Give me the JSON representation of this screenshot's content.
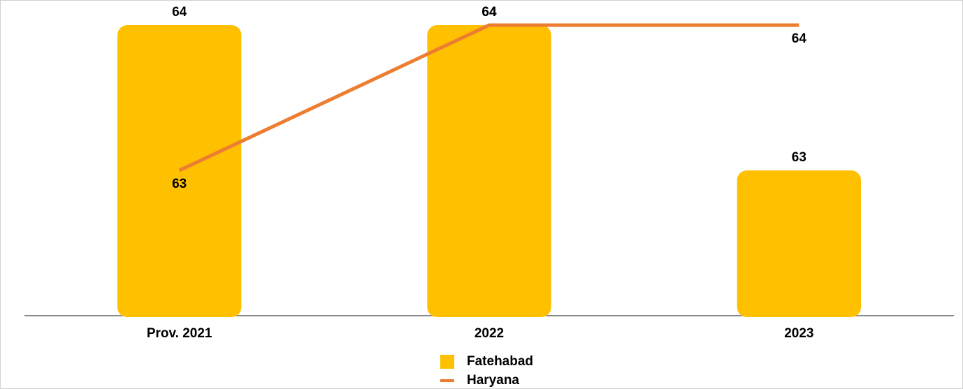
{
  "chart_data": {
    "type": "bar",
    "categories": [
      "Prov. 2021",
      "2022",
      "2023"
    ],
    "series": [
      {
        "name": "Fatehabad",
        "type": "bar",
        "color": "#ffc000",
        "values": [
          64,
          64,
          63
        ]
      },
      {
        "name": "Haryana",
        "type": "line",
        "color": "#ed7d31",
        "values": [
          63,
          64,
          64
        ]
      }
    ],
    "ylim": [
      62,
      64
    ],
    "grid": false
  }
}
